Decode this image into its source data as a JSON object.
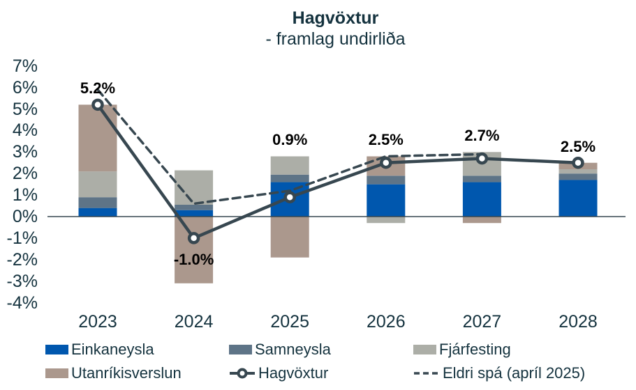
{
  "chart_data": {
    "type": "bar",
    "combo": "stacked-bar-with-lines",
    "title": "Hagvöxtur",
    "subtitle": "- framlag undirliða",
    "categories": [
      "2023",
      "2024",
      "2025",
      "2026",
      "2027",
      "2028"
    ],
    "bar_series": [
      {
        "name": "Einkaneysla",
        "color": "#0057ae",
        "values": [
          0.4,
          0.3,
          1.6,
          1.5,
          1.6,
          1.7
        ]
      },
      {
        "name": "Samneysla",
        "color": "#5e7487",
        "values": [
          0.5,
          0.25,
          0.35,
          0.4,
          0.3,
          0.3
        ]
      },
      {
        "name": "Fjárfesting",
        "color": "#acaea7",
        "values": [
          1.2,
          1.6,
          0.85,
          -0.3,
          1.1,
          0.2
        ]
      },
      {
        "name": "Utanríkisverslun",
        "color": "#ab988d",
        "values": [
          3.1,
          -3.1,
          -1.9,
          0.9,
          -0.3,
          0.3
        ]
      }
    ],
    "line_series": [
      {
        "name": "Hagvöxtur",
        "style": "solid",
        "marker": true,
        "color": "#374750",
        "values": [
          5.2,
          -1.0,
          0.9,
          2.5,
          2.7,
          2.5
        ]
      },
      {
        "name": "Eldri spá (apríl 2025)",
        "style": "dashed",
        "marker": false,
        "color": "#374750",
        "values": [
          5.9,
          0.6,
          1.2,
          2.8,
          2.9,
          null
        ]
      }
    ],
    "data_labels": [
      "5.2%",
      "-1.0%",
      "0.9%",
      "2.5%",
      "2.7%",
      "2.5%"
    ],
    "y_ticks": [
      "7%",
      "6%",
      "5%",
      "4%",
      "3%",
      "2%",
      "1%",
      "0%",
      "-1%",
      "-2%",
      "-3%",
      "-4%"
    ],
    "ylim": [
      -4,
      7
    ],
    "grid": false,
    "legend_position": "bottom"
  },
  "legend": {
    "rows": [
      [
        {
          "label": "Einkaneysla",
          "type": "swatch",
          "color": "#0057ae"
        },
        {
          "label": "Samneysla",
          "type": "swatch",
          "color": "#5e7487"
        },
        {
          "label": "Fjárfesting",
          "type": "swatch",
          "color": "#acaea7"
        }
      ],
      [
        {
          "label": "Utanríkisverslun",
          "type": "swatch",
          "color": "#ab988d"
        },
        {
          "label": "Hagvöxtur",
          "type": "line-marker",
          "color": "#374750"
        },
        {
          "label": "Eldri spá (apríl 2025)",
          "type": "dashed-line",
          "color": "#374750"
        }
      ]
    ]
  },
  "colors": {
    "text": "#14323e",
    "axis_line": "#374750",
    "data_label": "#000000"
  }
}
